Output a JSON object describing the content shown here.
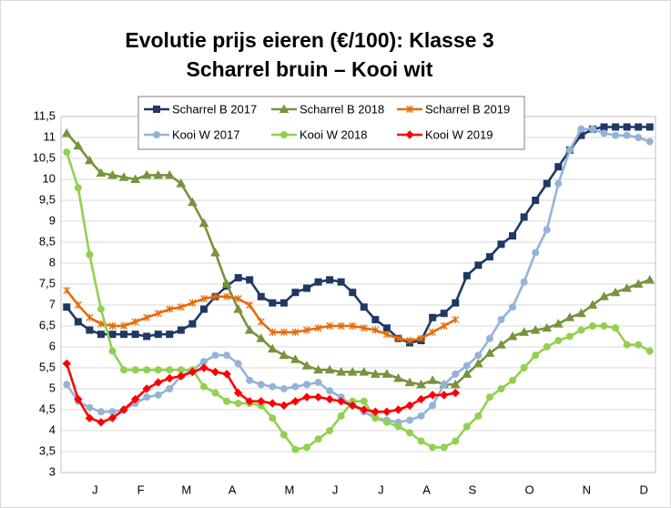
{
  "chart_data": {
    "type": "line",
    "title": "Evolutie prijs eieren (€/100): Klasse 3",
    "subtitle": "Scharrel bruin – Kooi wit",
    "categories": [
      null,
      null,
      "J",
      null,
      null,
      null,
      "F",
      null,
      null,
      null,
      "M",
      null,
      null,
      null,
      "A",
      null,
      null,
      null,
      null,
      "M",
      null,
      null,
      null,
      "J",
      null,
      null,
      null,
      "J",
      null,
      null,
      null,
      "A",
      null,
      null,
      null,
      "S",
      null,
      null,
      null,
      null,
      "O",
      null,
      null,
      null,
      null,
      "N",
      null,
      null,
      null,
      null,
      "D",
      null
    ],
    "ylim": [
      3,
      11.5
    ],
    "yticks": [
      3,
      {
        "value": 3.5,
        "label": "3,5"
      },
      4,
      {
        "value": 4.5,
        "label": "4,5"
      },
      5,
      {
        "value": 5.5,
        "label": "5,5"
      },
      6,
      {
        "value": 6.5,
        "label": "6,5"
      },
      7,
      {
        "value": 7.5,
        "label": "7,5"
      },
      8,
      {
        "value": 8.5,
        "label": "8,5"
      },
      9,
      {
        "value": 9.5,
        "label": "9,5"
      },
      10,
      {
        "value": 10.5,
        "label": "10,5"
      },
      11,
      {
        "value": 11.5,
        "label": "11,5"
      }
    ],
    "grid": true,
    "series": [
      {
        "name": "Scharrel B 2017",
        "color": "#1f3864",
        "marker": "square",
        "values": [
          6.95,
          6.6,
          6.4,
          6.3,
          6.3,
          6.3,
          6.3,
          6.25,
          6.3,
          6.3,
          6.4,
          6.55,
          6.9,
          7.2,
          7.45,
          7.65,
          7.6,
          7.2,
          7.05,
          7.05,
          7.3,
          7.4,
          7.55,
          7.6,
          7.55,
          7.3,
          6.95,
          6.65,
          6.45,
          6.2,
          6.1,
          6.15,
          6.7,
          6.8,
          7.05,
          7.7,
          7.95,
          8.15,
          8.45,
          8.65,
          9.1,
          9.5,
          9.9,
          10.3,
          10.7,
          11.05,
          11.2,
          11.25,
          11.25,
          11.25,
          11.25,
          11.25
        ]
      },
      {
        "name": "Scharrel B 2018",
        "color": "#77933c",
        "marker": "triangle",
        "values": [
          11.1,
          10.8,
          10.45,
          10.15,
          10.1,
          10.05,
          10.0,
          10.1,
          10.1,
          10.1,
          9.9,
          9.45,
          8.95,
          8.25,
          7.5,
          6.9,
          6.4,
          6.2,
          5.95,
          5.8,
          5.7,
          5.55,
          5.45,
          5.45,
          5.4,
          5.4,
          5.4,
          5.35,
          5.35,
          5.25,
          5.15,
          5.1,
          5.2,
          5.1,
          5.1,
          5.35,
          5.6,
          5.85,
          6.05,
          6.25,
          6.35,
          6.4,
          6.45,
          6.55,
          6.7,
          6.8,
          7.0,
          7.2,
          7.3,
          7.4,
          7.5,
          7.6
        ]
      },
      {
        "name": "Scharrel B 2019",
        "color": "#e46c0a",
        "marker": "star",
        "values": [
          7.35,
          7.0,
          6.7,
          6.55,
          6.5,
          6.5,
          6.6,
          6.7,
          6.8,
          6.9,
          6.95,
          7.05,
          7.15,
          7.2,
          7.2,
          7.15,
          7.0,
          6.6,
          6.35,
          6.35,
          6.35,
          6.4,
          6.45,
          6.5,
          6.5,
          6.5,
          6.45,
          6.4,
          6.3,
          6.2,
          6.15,
          6.2,
          6.35,
          6.5,
          6.65,
          null,
          null,
          null,
          null,
          null,
          null,
          null,
          null,
          null,
          null,
          null,
          null,
          null,
          null,
          null,
          null,
          null
        ]
      },
      {
        "name": "Kooi W 2017",
        "color": "#95b3d7",
        "marker": "circle",
        "values": [
          5.1,
          4.7,
          4.55,
          4.45,
          4.45,
          4.5,
          4.65,
          4.8,
          4.85,
          5.0,
          5.3,
          5.45,
          5.65,
          5.8,
          5.8,
          5.6,
          5.2,
          5.1,
          5.05,
          5.0,
          5.05,
          5.1,
          5.15,
          4.95,
          4.8,
          4.6,
          4.45,
          4.3,
          4.25,
          4.2,
          4.25,
          4.35,
          4.6,
          5.1,
          5.35,
          5.55,
          5.8,
          6.2,
          6.65,
          6.95,
          7.55,
          8.25,
          8.8,
          9.9,
          10.7,
          11.2,
          11.2,
          11.1,
          11.05,
          11.05,
          11.0,
          10.9
        ]
      },
      {
        "name": "Kooi W 2018",
        "color": "#92d050",
        "marker": "circle",
        "values": [
          10.65,
          9.8,
          8.2,
          6.9,
          5.9,
          5.45,
          5.45,
          5.45,
          5.45,
          5.45,
          5.45,
          5.45,
          5.05,
          4.9,
          4.7,
          4.65,
          4.65,
          4.6,
          4.3,
          3.9,
          3.55,
          3.6,
          3.8,
          4.0,
          4.35,
          4.7,
          4.7,
          4.3,
          4.2,
          4.1,
          3.95,
          3.75,
          3.6,
          3.6,
          3.75,
          4.1,
          4.35,
          4.8,
          5.0,
          5.2,
          5.5,
          5.8,
          6.0,
          6.15,
          6.25,
          6.4,
          6.5,
          6.5,
          6.45,
          6.05,
          6.05,
          5.9
        ]
      },
      {
        "name": "Kooi W 2019",
        "color": "#ff0000",
        "marker": "diamond",
        "values": [
          5.6,
          4.75,
          4.3,
          4.2,
          4.3,
          4.5,
          4.75,
          5.0,
          5.15,
          5.25,
          5.3,
          5.4,
          5.5,
          5.4,
          5.35,
          4.9,
          4.7,
          4.7,
          4.65,
          4.6,
          4.7,
          4.8,
          4.8,
          4.75,
          4.7,
          4.6,
          4.5,
          4.45,
          4.45,
          4.5,
          4.6,
          4.75,
          4.85,
          4.85,
          4.9,
          null,
          null,
          null,
          null,
          null,
          null,
          null,
          null,
          null,
          null,
          null,
          null,
          null,
          null,
          null,
          null,
          null
        ]
      }
    ]
  }
}
